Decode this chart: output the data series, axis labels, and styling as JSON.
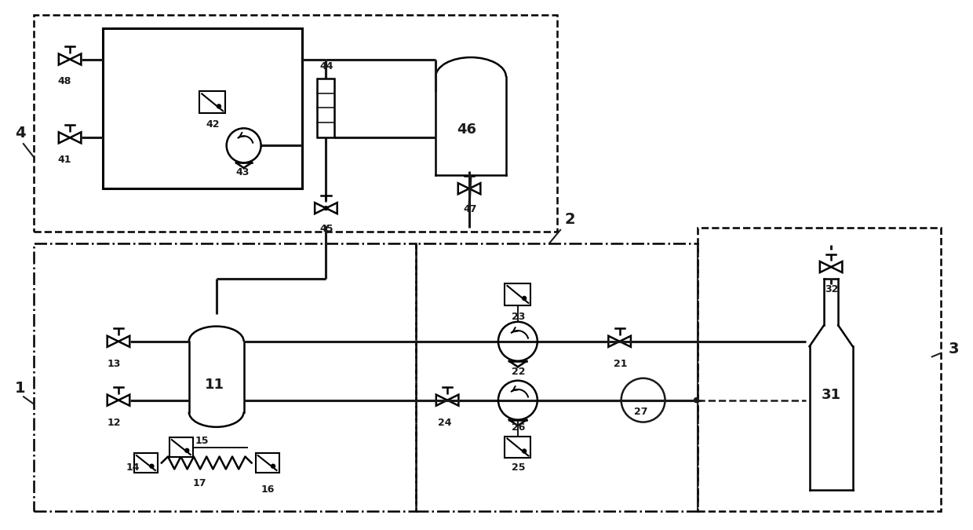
{
  "bg_color": "#ffffff",
  "line_color": "#1a1a1a",
  "line_width": 1.8,
  "thick_line": 2.2,
  "fig_width": 12.4,
  "fig_height": 6.75,
  "dpi": 100
}
